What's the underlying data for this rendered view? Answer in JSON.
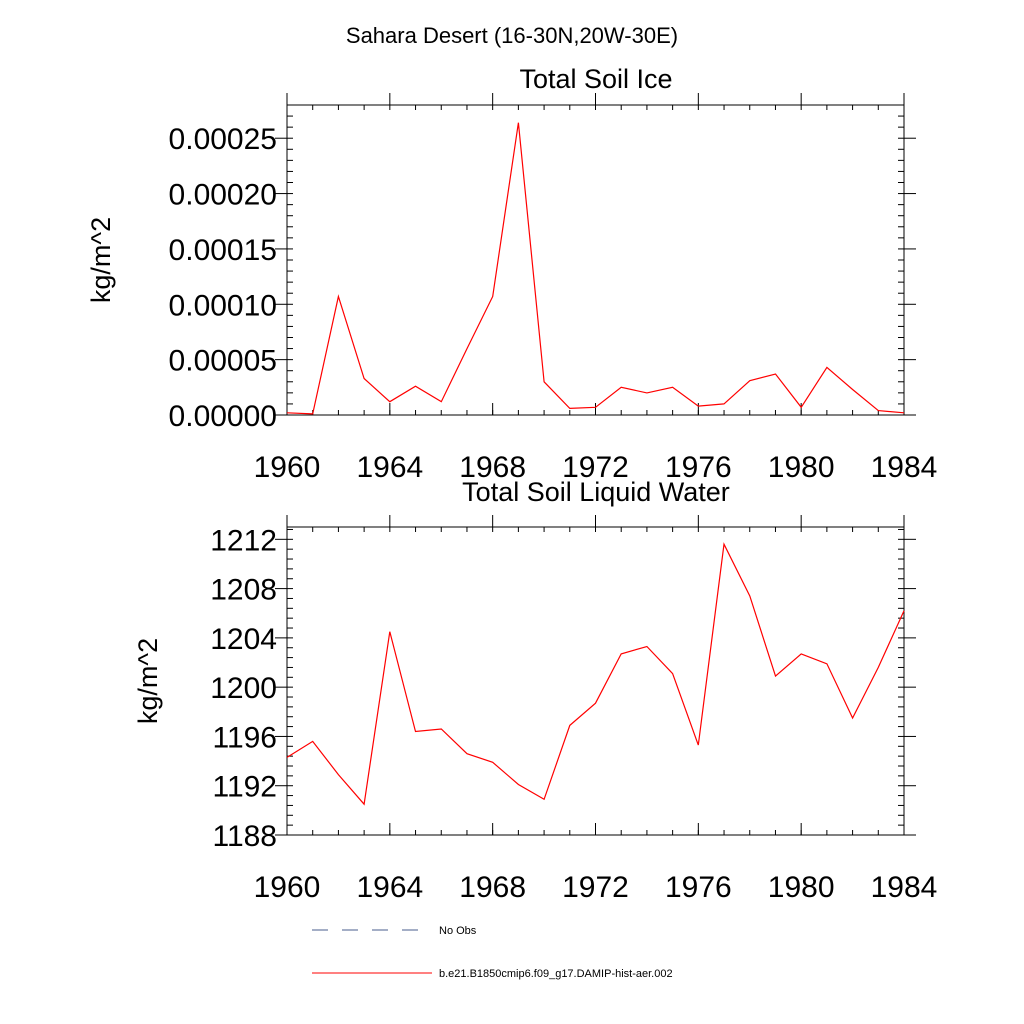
{
  "figure": {
    "title": "Sahara Desert (16-30N,20W-30E)"
  },
  "legend": {
    "entries": [
      {
        "label": "No Obs",
        "style": "dashed",
        "color": "#4a5c8c"
      },
      {
        "label": "b.e21.B1850cmip6.f09_g17.DAMIP-hist-aer.002",
        "style": "solid",
        "color": "#ff0000"
      }
    ]
  },
  "chart_data": [
    {
      "type": "line",
      "title": "Total Soil Ice",
      "xlabel": "",
      "ylabel": "kg/m^2",
      "xlim": [
        1960,
        1984
      ],
      "ylim": [
        0,
        0.00028
      ],
      "xticks": [
        1960,
        1964,
        1968,
        1972,
        1976,
        1980,
        1984
      ],
      "xtick_labels": [
        "1960",
        "1964",
        "1968",
        "1972",
        "1976",
        "1980",
        "1984"
      ],
      "yticks": [
        0,
        5e-05,
        0.0001,
        0.00015,
        0.0002,
        0.00025
      ],
      "ytick_labels": [
        "0.00000",
        "0.00005",
        "0.00010",
        "0.00015",
        "0.00020",
        "0.00025"
      ],
      "grid": false,
      "color": "#ff0000",
      "series": [
        {
          "name": "b.e21.B1850cmip6.f09_g17.DAMIP-hist-aer.002",
          "x": [
            1960,
            1961,
            1962,
            1963,
            1964,
            1965,
            1966,
            1967,
            1968,
            1969,
            1970,
            1971,
            1972,
            1973,
            1974,
            1975,
            1976,
            1977,
            1978,
            1979,
            1980,
            1981,
            1982,
            1983,
            1984
          ],
          "values": [
            2e-06,
            1e-06,
            0.000107,
            3.3e-05,
            1.2e-05,
            2.6e-05,
            1.2e-05,
            6e-05,
            0.000107,
            0.000264,
            3e-05,
            6e-06,
            7e-06,
            2.5e-05,
            2e-05,
            2.5e-05,
            8e-06,
            1e-05,
            3.1e-05,
            3.7e-05,
            7e-06,
            4.3e-05,
            2.3e-05,
            4e-06,
            2e-06
          ]
        }
      ]
    },
    {
      "type": "line",
      "title": "Total Soil Liquid Water",
      "xlabel": "",
      "ylabel": "kg/m^2",
      "xlim": [
        1960,
        1984
      ],
      "ylim": [
        1188,
        1213
      ],
      "xticks": [
        1960,
        1964,
        1968,
        1972,
        1976,
        1980,
        1984
      ],
      "xtick_labels": [
        "1960",
        "1964",
        "1968",
        "1972",
        "1976",
        "1980",
        "1984"
      ],
      "yticks": [
        1188,
        1192,
        1196,
        1200,
        1204,
        1208,
        1212
      ],
      "ytick_labels": [
        "1188",
        "1192",
        "1196",
        "1200",
        "1204",
        "1208",
        "1212"
      ],
      "grid": false,
      "color": "#ff0000",
      "series": [
        {
          "name": "b.e21.B1850cmip6.f09_g17.DAMIP-hist-aer.002",
          "x": [
            1960,
            1961,
            1962,
            1963,
            1964,
            1965,
            1966,
            1967,
            1968,
            1969,
            1970,
            1971,
            1972,
            1973,
            1974,
            1975,
            1976,
            1977,
            1978,
            1979,
            1980,
            1981,
            1982,
            1983,
            1984
          ],
          "values": [
            1194.3,
            1195.6,
            1192.9,
            1190.5,
            1204.5,
            1196.4,
            1196.6,
            1194.6,
            1193.9,
            1192.1,
            1190.9,
            1196.9,
            1198.7,
            1202.7,
            1203.3,
            1201.1,
            1195.3,
            1211.6,
            1207.4,
            1200.9,
            1202.7,
            1201.9,
            1197.5,
            1201.6,
            1206.2
          ]
        }
      ]
    }
  ]
}
